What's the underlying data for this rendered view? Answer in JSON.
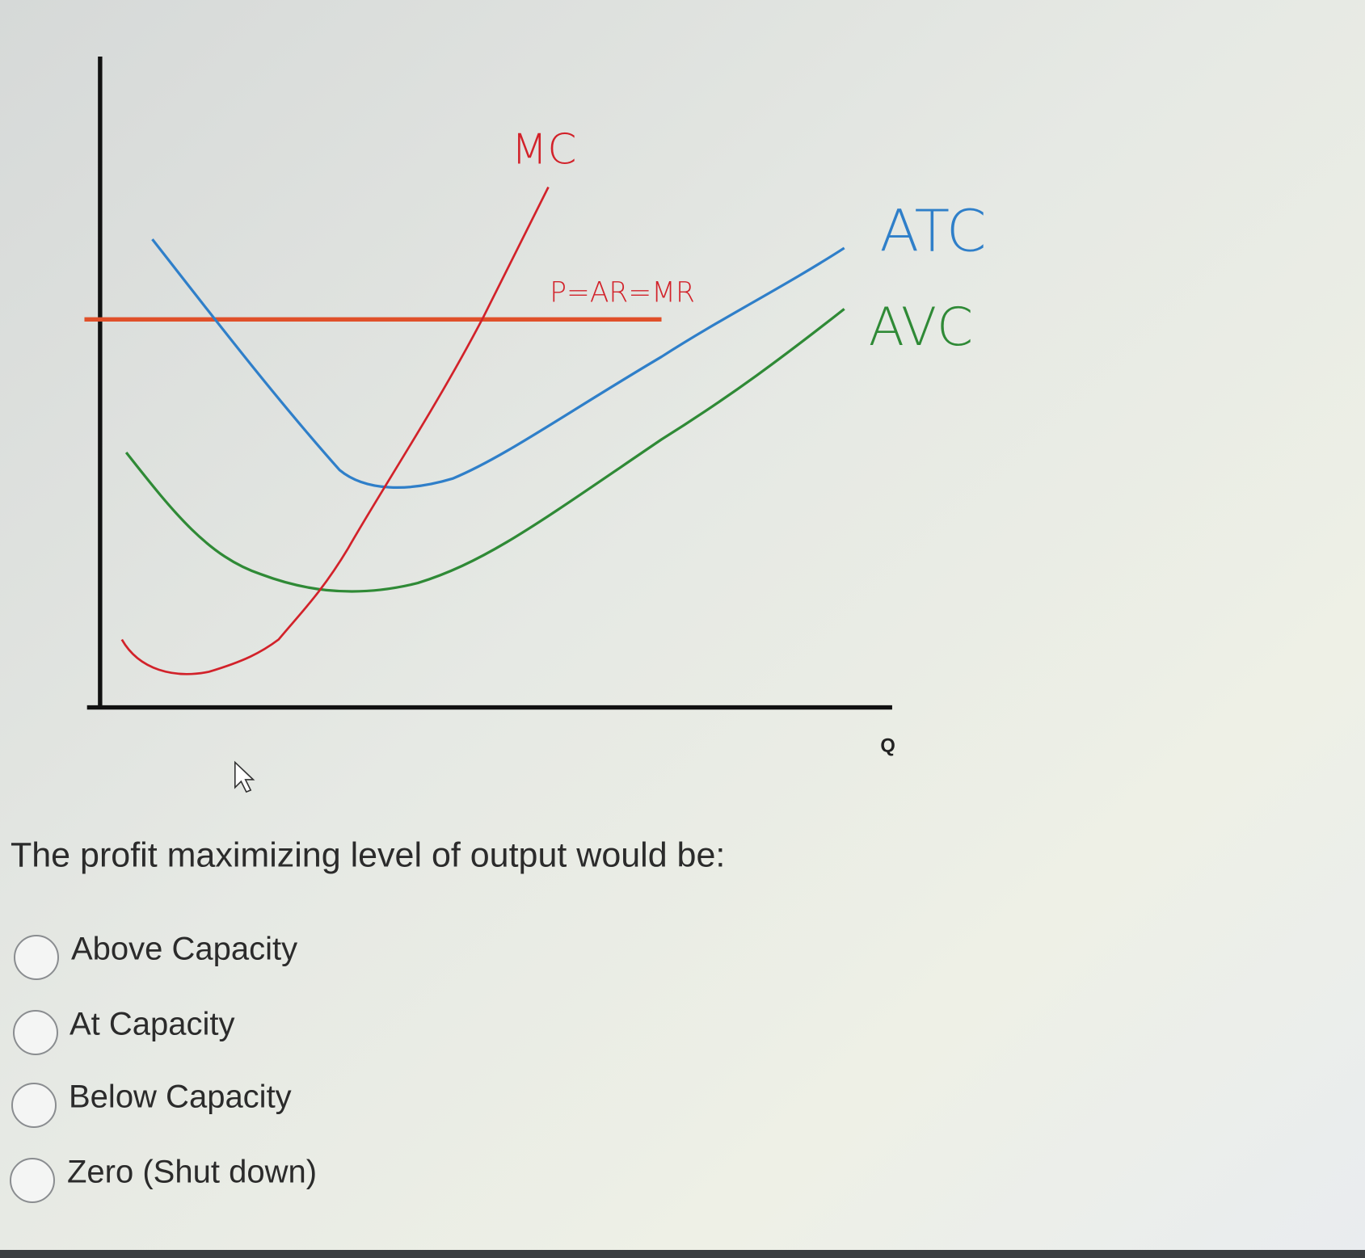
{
  "diagram": {
    "curve_labels": {
      "mc": "MC",
      "price": "P=AR=MR",
      "atc": "ATC",
      "avc": "AVC"
    },
    "x_axis_label": "Q"
  },
  "question": {
    "prompt": "The profit maximizing level of output would be:",
    "options": [
      "Above Capacity",
      "At Capacity",
      "Below Capacity",
      "Zero (Shut down)"
    ]
  }
}
